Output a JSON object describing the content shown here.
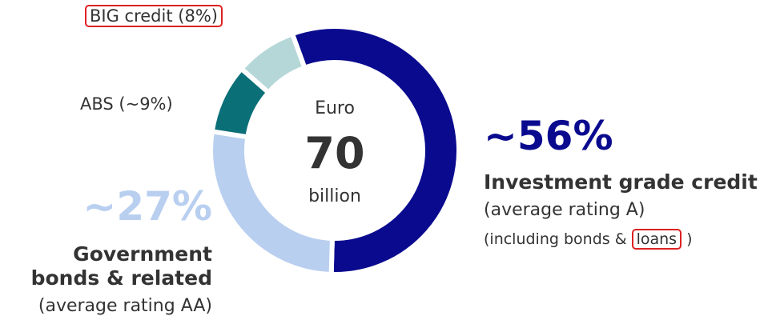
{
  "chart_data": {
    "type": "donut",
    "categories": [
      "Investment grade credit",
      "Government bonds & related",
      "ABS (~9%)",
      "BIG credit (8%)"
    ],
    "values": [
      56,
      27,
      9,
      8
    ],
    "value_labels": [
      "~56%",
      "~27%",
      null,
      null
    ],
    "colors": [
      "#0a0a8f",
      "#b9cff0",
      "#0b6f78",
      "#b5d7d7"
    ],
    "notes": [
      "(average rating A)",
      "(average rating AA)",
      null,
      null
    ],
    "detail": [
      "(including bonds & ",
      "loans",
      " )"
    ],
    "center": {
      "top": "Euro",
      "value": 70,
      "bottom": "billion"
    }
  }
}
